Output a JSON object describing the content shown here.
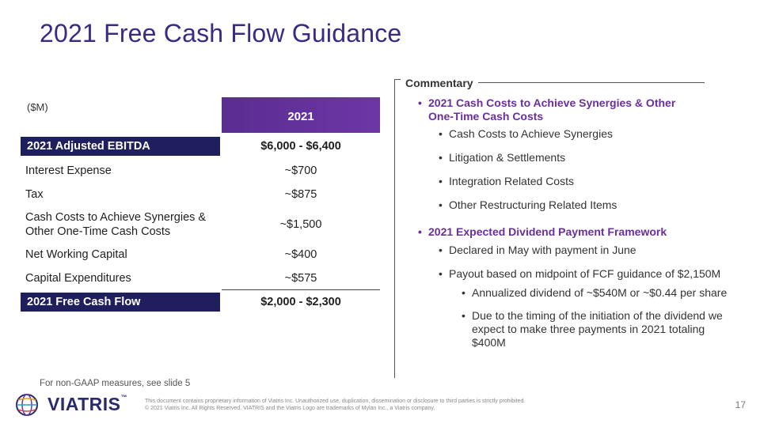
{
  "title": "2021 Free Cash Flow Guidance",
  "table": {
    "unit": "($M)",
    "year_header": "2021",
    "rows": [
      {
        "label": "2021 Adjusted EBITDA",
        "value": "$6,000 - $6,400"
      },
      {
        "label": "Interest Expense",
        "value": "~$700"
      },
      {
        "label": "Tax",
        "value": "~$875"
      },
      {
        "label": "Cash Costs to Achieve Synergies & Other One-Time Cash Costs",
        "value": "~$1,500"
      },
      {
        "label": "Net Working Capital",
        "value": "~$400"
      },
      {
        "label": "Capital Expenditures",
        "value": "~$575"
      },
      {
        "label": "2021 Free Cash Flow",
        "value": "$2,000 - $2,300"
      }
    ]
  },
  "commentary": {
    "label": "Commentary",
    "sections": [
      {
        "heading": "2021 Cash Costs to Achieve Synergies & Other One-Time Cash Costs",
        "items": [
          "Cash Costs to Achieve Synergies",
          "Litigation & Settlements",
          "Integration Related Costs",
          "Other Restructuring Related Items"
        ]
      },
      {
        "heading": "2021 Expected Dividend Payment Framework",
        "items": [
          "Declared in May with payment in June",
          "Payout based on midpoint of FCF guidance of $2,150M"
        ],
        "subitems": [
          "Annualized dividend of ~$540M or ~$0.44 per share",
          "Due to the timing of the initiation of the dividend we expect to make three payments in 2021 totaling $400M"
        ]
      }
    ]
  },
  "footnote": "For non-GAAP measures, see slide 5",
  "footer": {
    "brand": "VIATRIS",
    "tm": "™",
    "legal_line1": "This document contains proprietary information of Viatris Inc. Unauthorized use, duplication, dissemination or disclosure to third parties is strictly prohibited.",
    "legal_line2": "© 2021 Viatris Inc. All Rights Reserved. VIATRIS and the Viatris Logo are trademarks of Mylan Inc., a Viatris company.",
    "page_number": "17"
  },
  "colors": {
    "title": "#3b2a84",
    "header_purple": "#5a2d91",
    "row_navy": "#1f1f5e",
    "commentary_purple": "#6a2e9e"
  }
}
